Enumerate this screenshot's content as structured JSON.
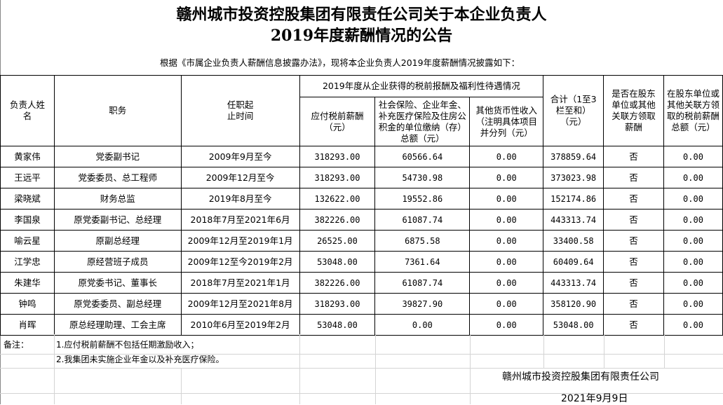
{
  "title": {
    "line1": "赣州城市投资控股集团有限责任公司关于本企业负责人",
    "line2": "2019年度薪酬情况的公告"
  },
  "intro": "根据《市属企业负责人薪酬信息披露办法》，现将本企业负责人2019年度薪酬情况披露如下：",
  "headers": {
    "name": "负责人姓名",
    "position": "职务",
    "term": "任职起止时间",
    "group": "2019年度从企业获得的税前报酬及福利性待遇情况",
    "salary": "应付税前薪酬（元）",
    "insurance": "社会保险、企业年金、补充医疗保险及住房公积金的单位缴纳（存）总额（元）",
    "other": "其他货币性收入（注明具体项目并分列（元）",
    "total": "合计（1至3栏至和）（元）",
    "shareholder": "是否在股东单位或其他关联方领取薪酬",
    "shareholder_amount": "在股东单位或其他关联方领取的税前薪酬总额（元）"
  },
  "rows": [
    {
      "name": "黄家伟",
      "position": "党委副书记",
      "term": "2009年9月至今",
      "salary": "318293.00",
      "insurance": "60566.64",
      "other": "0.00",
      "total": "378859.64",
      "shareholder": "否",
      "shareholder_amount": "0.00"
    },
    {
      "name": "王远平",
      "position": "党委委员、总工程师",
      "term": "2009年12月至今",
      "salary": "318293.00",
      "insurance": "54730.98",
      "other": "0.00",
      "total": "373023.98",
      "shareholder": "否",
      "shareholder_amount": "0.00"
    },
    {
      "name": "梁晓斌",
      "position": "财务总监",
      "term": "2019年8月至今",
      "salary": "132622.00",
      "insurance": "19552.86",
      "other": "0.00",
      "total": "152174.86",
      "shareholder": "否",
      "shareholder_amount": "0.00"
    },
    {
      "name": "李国泉",
      "position": "原党委副书记、总经理",
      "term": "2018年7月至2021年6月",
      "salary": "382226.00",
      "insurance": "61087.74",
      "other": "0.00",
      "total": "443313.74",
      "shareholder": "否",
      "shareholder_amount": "0.00"
    },
    {
      "name": "喻云星",
      "position": "原副总经理",
      "term": "2009年12月至2019年1月",
      "salary": "26525.00",
      "insurance": "6875.58",
      "other": "0.00",
      "total": "33400.58",
      "shareholder": "否",
      "shareholder_amount": "0.00"
    },
    {
      "name": "江学忠",
      "position": "原经营班子成员",
      "term": "2009年12至今2019年2月",
      "salary": "53048.00",
      "insurance": "7361.64",
      "other": "0.00",
      "total": "60409.64",
      "shareholder": "否",
      "shareholder_amount": "0.00"
    },
    {
      "name": "朱建华",
      "position": "原党委书记、董事长",
      "term": "2018年7月至2021年1月",
      "salary": "382226.00",
      "insurance": "61087.74",
      "other": "0.00",
      "total": "443313.74",
      "shareholder": "否",
      "shareholder_amount": "0.00"
    },
    {
      "name": "钟鸣",
      "position": "原党委委员、副总经理",
      "term": "2009年12月至2021年8月",
      "salary": "318293.00",
      "insurance": "39827.90",
      "other": "0.00",
      "total": "358120.90",
      "shareholder": "否",
      "shareholder_amount": "0.00"
    },
    {
      "name": "肖晖",
      "position": "原总经理助理、工会主席",
      "term": "2010年6月至2019年2月",
      "salary": "53048.00",
      "insurance": "0.00",
      "other": "0.00",
      "total": "53048.00",
      "shareholder": "否",
      "shareholder_amount": "0.00"
    }
  ],
  "notes": {
    "label": "备注：",
    "items": [
      "1.应付税前薪酬不包括任期激励收入；",
      "2.我集团未实施企业年金以及补充医疗保险。"
    ]
  },
  "signature": {
    "company": "赣州城市投资控股集团有限责任公司",
    "date": "2021年9月9日"
  }
}
